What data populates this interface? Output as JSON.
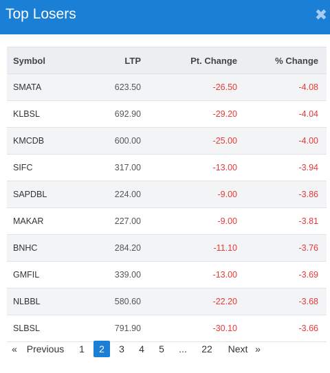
{
  "header": {
    "title": "Top Losers"
  },
  "table": {
    "columns": [
      "Symbol",
      "LTP",
      "Pt. Change",
      "% Change"
    ],
    "rows": [
      {
        "symbol": "SMATA",
        "ltp": "623.50",
        "pt_change": "-26.50",
        "pct_change": "-4.08"
      },
      {
        "symbol": "KLBSL",
        "ltp": "692.90",
        "pt_change": "-29.20",
        "pct_change": "-4.04"
      },
      {
        "symbol": "KMCDB",
        "ltp": "600.00",
        "pt_change": "-25.00",
        "pct_change": "-4.00"
      },
      {
        "symbol": "SIFC",
        "ltp": "317.00",
        "pt_change": "-13.00",
        "pct_change": "-3.94"
      },
      {
        "symbol": "SAPDBL",
        "ltp": "224.00",
        "pt_change": "-9.00",
        "pct_change": "-3.86"
      },
      {
        "symbol": "MAKAR",
        "ltp": "227.00",
        "pt_change": "-9.00",
        "pct_change": "-3.81"
      },
      {
        "symbol": "BNHC",
        "ltp": "284.20",
        "pt_change": "-11.10",
        "pct_change": "-3.76"
      },
      {
        "symbol": "GMFIL",
        "ltp": "339.00",
        "pt_change": "-13.00",
        "pct_change": "-3.69"
      },
      {
        "symbol": "NLBBL",
        "ltp": "580.60",
        "pt_change": "-22.20",
        "pct_change": "-3.68"
      },
      {
        "symbol": "SLBSL",
        "ltp": "791.90",
        "pt_change": "-30.10",
        "pct_change": "-3.66"
      }
    ]
  },
  "pagination": {
    "prev_arrow": "«",
    "prev_label": "Previous",
    "pages": [
      "1",
      "2",
      "3",
      "4",
      "5",
      "...",
      "22"
    ],
    "current_page": "2",
    "next_label": "Next",
    "next_arrow": "»"
  },
  "colors": {
    "header_bg": "#1b7fd6",
    "negative": "#e53935",
    "active_page_bg": "#1b7fd6"
  },
  "icons": {
    "close": "close-icon"
  }
}
